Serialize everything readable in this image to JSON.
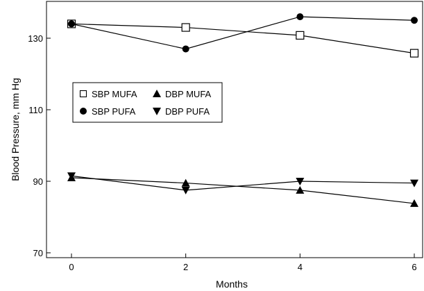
{
  "chart_data": {
    "type": "line",
    "title": "",
    "xlabel": "Months",
    "ylabel": "Blood Pressure, mm Hg",
    "x": [
      0,
      2,
      4,
      6
    ],
    "xticks": [
      "0",
      "2",
      "4",
      "6"
    ],
    "xlim": [
      -1.2,
      6
    ],
    "yticks": [
      "70",
      "90",
      "110",
      "130"
    ],
    "ytick_values": [
      70,
      90,
      110,
      130
    ],
    "ylim": [
      60,
      137.5
    ],
    "grid": false,
    "legend_position": "center-left",
    "series": [
      {
        "name": "SBP MUFA",
        "marker": "square-open",
        "values": [
          134,
          133,
          130.8,
          125.8
        ]
      },
      {
        "name": "DBP MUFA",
        "marker": "triangle-up",
        "values": [
          91,
          89.5,
          87.5,
          83.8
        ]
      },
      {
        "name": "SBP PUFA",
        "marker": "circle-filled",
        "values": [
          134,
          127,
          136,
          135
        ]
      },
      {
        "name": "DBP PUFA",
        "marker": "triangle-down",
        "values": [
          91.5,
          87.5,
          90,
          89.5
        ]
      }
    ]
  }
}
